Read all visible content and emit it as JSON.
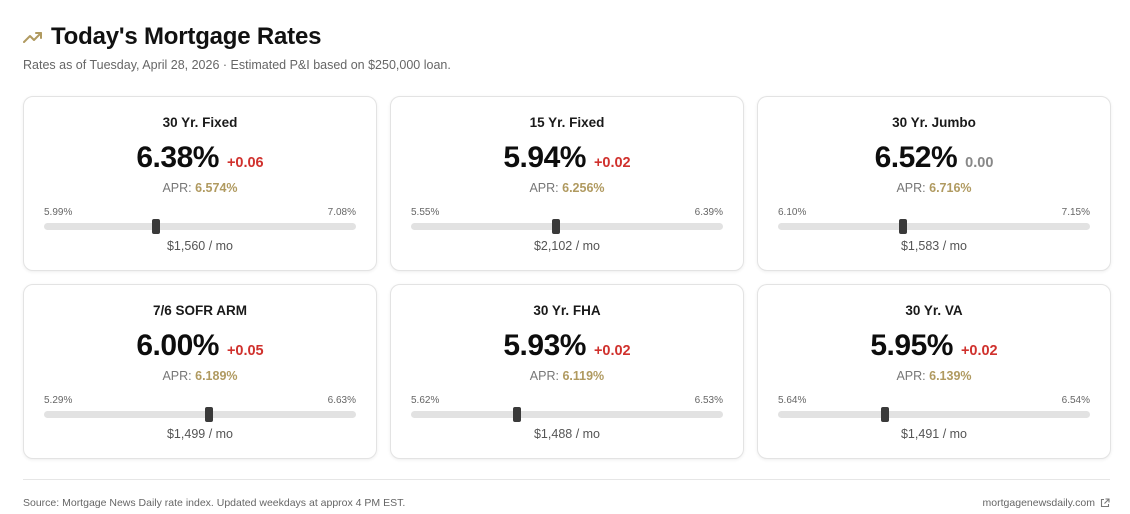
{
  "header": {
    "icon": "trending-up-icon",
    "title": "Today's Mortgage Rates",
    "subtitle": "Rates as of Tuesday, April 28, 2026 · Estimated P&I based on $250,000 loan."
  },
  "colors": {
    "accent": "#b09a60",
    "change_up": "#d0312d",
    "change_flat": "#888888"
  },
  "cards": [
    {
      "name": "30 Yr. Fixed",
      "rate": "6.38%",
      "change": "+0.06",
      "direction": "up",
      "apr_label": "APR:",
      "apr": "6.574%",
      "range_low": "5.99%",
      "range_high": "7.08%",
      "position": 0.358,
      "payment": "$1,560 / mo"
    },
    {
      "name": "15 Yr. Fixed",
      "rate": "5.94%",
      "change": "+0.02",
      "direction": "up",
      "apr_label": "APR:",
      "apr": "6.256%",
      "range_low": "5.55%",
      "range_high": "6.39%",
      "position": 0.464,
      "payment": "$2,102 / mo"
    },
    {
      "name": "30 Yr. Jumbo",
      "rate": "6.52%",
      "change": "0.00",
      "direction": "flat",
      "apr_label": "APR:",
      "apr": "6.716%",
      "range_low": "6.10%",
      "range_high": "7.15%",
      "position": 0.4,
      "payment": "$1,583 / mo"
    },
    {
      "name": "7/6 SOFR ARM",
      "rate": "6.00%",
      "change": "+0.05",
      "direction": "up",
      "apr_label": "APR:",
      "apr": "6.189%",
      "range_low": "5.29%",
      "range_high": "6.63%",
      "position": 0.53,
      "payment": "$1,499 / mo"
    },
    {
      "name": "30 Yr. FHA",
      "rate": "5.93%",
      "change": "+0.02",
      "direction": "up",
      "apr_label": "APR:",
      "apr": "6.119%",
      "range_low": "5.62%",
      "range_high": "6.53%",
      "position": 0.341,
      "payment": "$1,488 / mo"
    },
    {
      "name": "30 Yr. VA",
      "rate": "5.95%",
      "change": "+0.02",
      "direction": "up",
      "apr_label": "APR:",
      "apr": "6.139%",
      "range_low": "5.64%",
      "range_high": "6.54%",
      "position": 0.344,
      "payment": "$1,491 / mo"
    }
  ],
  "footer": {
    "source": "Source: Mortgage News Daily rate index. Updated weekdays at approx 4 PM EST.",
    "link_text": "mortgagenewsdaily.com",
    "link_icon": "external-link-icon"
  }
}
